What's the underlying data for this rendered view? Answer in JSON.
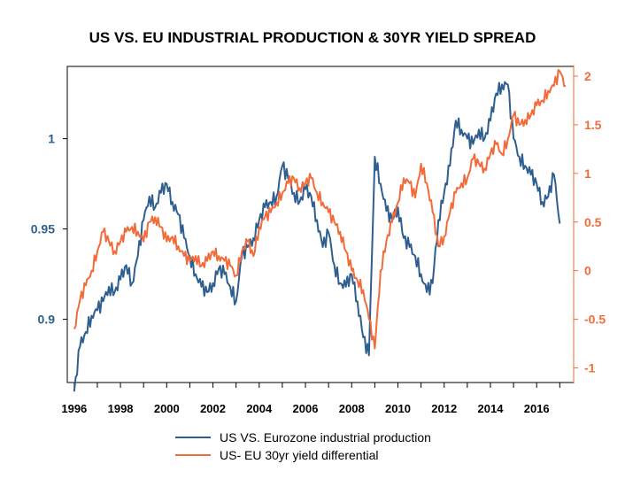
{
  "chart_data": {
    "type": "line",
    "title": "US VS. EU INDUSTRIAL PRODUCTION & 30YR YIELD SPREAD",
    "xlabel": "",
    "ylabel_left": "",
    "ylabel_right": "",
    "x_ticks": [
      "1996",
      "1998",
      "2000",
      "2002",
      "2004",
      "2006",
      "2008",
      "2010",
      "2012",
      "2014",
      "2016"
    ],
    "xlim": [
      1995.7,
      2017.6
    ],
    "y_left": {
      "lim": [
        0.865,
        1.04
      ],
      "ticks": [
        "0.9",
        "0.95",
        "1"
      ],
      "color": "#2f5f8f"
    },
    "y_right": {
      "lim": [
        -1.15,
        2.1
      ],
      "ticks": [
        "-1",
        "-0.5",
        "0",
        "0.5",
        "1",
        "1.5",
        "2"
      ],
      "color": "#f26b3a"
    },
    "grid": false,
    "legend_position": "bottom-center",
    "series": [
      {
        "name": "US VS. Eurozone industrial production",
        "axis": "left",
        "color": "#2f5f8f",
        "x": [
          1996.0,
          1996.25,
          1996.5,
          1996.75,
          1997.0,
          1997.25,
          1997.5,
          1997.75,
          1998.0,
          1998.25,
          1998.5,
          1998.75,
          1999.0,
          1999.25,
          1999.5,
          1999.75,
          2000.0,
          2000.25,
          2000.5,
          2000.75,
          2001.0,
          2001.25,
          2001.5,
          2001.75,
          2002.0,
          2002.25,
          2002.5,
          2002.75,
          2003.0,
          2003.25,
          2003.5,
          2003.75,
          2004.0,
          2004.25,
          2004.5,
          2004.75,
          2005.0,
          2005.25,
          2005.5,
          2005.75,
          2006.0,
          2006.25,
          2006.5,
          2006.75,
          2007.0,
          2007.25,
          2007.5,
          2007.75,
          2008.0,
          2008.25,
          2008.5,
          2008.75,
          2009.0,
          2009.25,
          2009.5,
          2009.75,
          2010.0,
          2010.25,
          2010.5,
          2010.75,
          2011.0,
          2011.25,
          2011.5,
          2011.75,
          2012.0,
          2012.25,
          2012.5,
          2012.75,
          2013.0,
          2013.25,
          2013.5,
          2013.75,
          2014.0,
          2014.25,
          2014.5,
          2014.75,
          2015.0,
          2015.25,
          2015.5,
          2015.75,
          2016.0,
          2016.25,
          2016.5,
          2016.75,
          2017.0
        ],
        "values": [
          0.86,
          0.885,
          0.893,
          0.902,
          0.905,
          0.91,
          0.918,
          0.915,
          0.922,
          0.93,
          0.92,
          0.935,
          0.955,
          0.968,
          0.962,
          0.97,
          0.975,
          0.965,
          0.958,
          0.945,
          0.935,
          0.925,
          0.918,
          0.915,
          0.92,
          0.928,
          0.925,
          0.918,
          0.91,
          0.935,
          0.94,
          0.945,
          0.955,
          0.962,
          0.965,
          0.968,
          0.985,
          0.978,
          0.97,
          0.965,
          0.972,
          0.968,
          0.955,
          0.94,
          0.948,
          0.93,
          0.92,
          0.918,
          0.925,
          0.91,
          0.89,
          0.88,
          0.99,
          0.975,
          0.96,
          0.955,
          0.962,
          0.945,
          0.94,
          0.935,
          0.925,
          0.915,
          0.92,
          0.955,
          0.97,
          0.985,
          1.01,
          1.005,
          1.0,
          0.997,
          1.005,
          1.0,
          1.01,
          1.025,
          1.03,
          1.03,
          1.0,
          0.99,
          0.985,
          0.98,
          0.975,
          0.965,
          0.968,
          0.98,
          0.953
        ]
      },
      {
        "name": "US- EU 30yr yield differential",
        "axis": "right",
        "color": "#f26b3a",
        "x": [
          1996.0,
          1996.25,
          1996.5,
          1996.75,
          1997.0,
          1997.25,
          1997.5,
          1997.75,
          1998.0,
          1998.25,
          1998.5,
          1998.75,
          1999.0,
          1999.25,
          1999.5,
          1999.75,
          2000.0,
          2000.25,
          2000.5,
          2000.75,
          2001.0,
          2001.25,
          2001.5,
          2001.75,
          2002.0,
          2002.25,
          2002.5,
          2002.75,
          2003.0,
          2003.25,
          2003.5,
          2003.75,
          2004.0,
          2004.25,
          2004.5,
          2004.75,
          2005.0,
          2005.25,
          2005.5,
          2005.75,
          2006.0,
          2006.25,
          2006.5,
          2006.75,
          2007.0,
          2007.25,
          2007.5,
          2007.75,
          2008.0,
          2008.25,
          2008.5,
          2008.75,
          2009.0,
          2009.25,
          2009.5,
          2009.75,
          2010.0,
          2010.25,
          2010.5,
          2010.75,
          2011.0,
          2011.25,
          2011.5,
          2011.75,
          2012.0,
          2012.25,
          2012.5,
          2012.75,
          2013.0,
          2013.25,
          2013.5,
          2013.75,
          2014.0,
          2014.25,
          2014.5,
          2014.75,
          2015.0,
          2015.25,
          2015.5,
          2015.75,
          2016.0,
          2016.25,
          2016.5,
          2016.75,
          2017.0,
          2017.25
        ],
        "values": [
          -0.6,
          -0.3,
          -0.15,
          0.0,
          0.2,
          0.4,
          0.3,
          0.2,
          0.3,
          0.4,
          0.45,
          0.4,
          0.3,
          0.5,
          0.55,
          0.45,
          0.3,
          0.35,
          0.25,
          0.15,
          0.1,
          0.15,
          0.05,
          0.1,
          0.2,
          0.15,
          0.1,
          0.05,
          -0.05,
          0.2,
          0.3,
          0.15,
          0.45,
          0.55,
          0.6,
          0.7,
          0.8,
          0.9,
          0.95,
          0.85,
          0.9,
          0.95,
          0.8,
          0.7,
          0.6,
          0.5,
          0.4,
          0.2,
          0.0,
          -0.1,
          -0.2,
          -0.5,
          -0.8,
          0.0,
          0.3,
          0.5,
          0.7,
          0.95,
          0.9,
          0.75,
          1.1,
          0.9,
          0.6,
          0.25,
          0.35,
          0.6,
          0.8,
          0.9,
          0.95,
          1.15,
          1.1,
          1.05,
          1.2,
          1.3,
          1.2,
          1.35,
          1.6,
          1.5,
          1.55,
          1.6,
          1.7,
          1.75,
          1.85,
          1.9,
          2.05,
          1.9
        ]
      }
    ]
  }
}
